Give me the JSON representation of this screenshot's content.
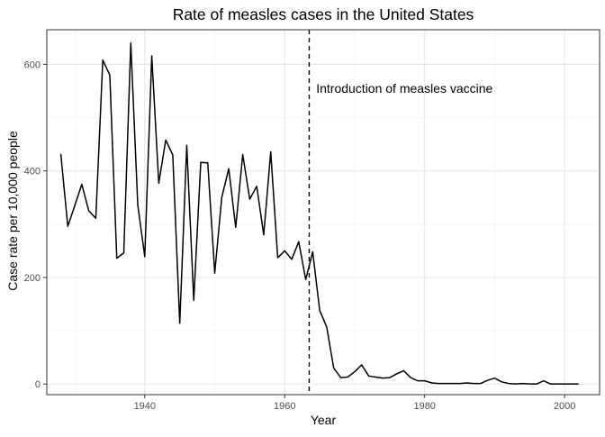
{
  "chart_data": {
    "type": "line",
    "title": "Rate of measles cases in the United States",
    "xlabel": "Year",
    "ylabel": "Case rate per 10,000 people",
    "xlim": [
      1926,
      2005
    ],
    "ylim": [
      -20,
      665
    ],
    "x_ticks": [
      1940,
      1960,
      1980,
      2000
    ],
    "y_ticks": [
      0,
      200,
      400,
      600
    ],
    "grid": true,
    "legend": "none",
    "series": [
      {
        "color": "#000000",
        "x": [
          1928,
          1929,
          1930,
          1931,
          1932,
          1933,
          1934,
          1935,
          1936,
          1937,
          1938,
          1939,
          1940,
          1941,
          1942,
          1943,
          1944,
          1945,
          1946,
          1947,
          1948,
          1949,
          1950,
          1951,
          1952,
          1953,
          1954,
          1955,
          1956,
          1957,
          1958,
          1959,
          1960,
          1961,
          1962,
          1963,
          1964,
          1965,
          1966,
          1967,
          1968,
          1969,
          1970,
          1971,
          1972,
          1973,
          1974,
          1975,
          1976,
          1977,
          1978,
          1979,
          1980,
          1981,
          1982,
          1983,
          1984,
          1985,
          1986,
          1987,
          1988,
          1989,
          1990,
          1991,
          1992,
          1993,
          1994,
          1995,
          1996,
          1997,
          1998,
          1999,
          2000,
          2001,
          2002
        ],
        "y": [
          432,
          296,
          335,
          375,
          325,
          311,
          608,
          580,
          236,
          246,
          640,
          336,
          239,
          616,
          377,
          458,
          430,
          114,
          448,
          157,
          416,
          415,
          208,
          350,
          404,
          294,
          431,
          347,
          371,
          280,
          436,
          237,
          250,
          234,
          267,
          196,
          248,
          138,
          107,
          30,
          12,
          13,
          23,
          36,
          15,
          13,
          11,
          12,
          19,
          25,
          12,
          6,
          6,
          2,
          1,
          1,
          1,
          1,
          2,
          1,
          1,
          7,
          11,
          4,
          1,
          0,
          1,
          0,
          0,
          6,
          0,
          0,
          0,
          0,
          0
        ]
      }
    ],
    "annotations": [
      {
        "type": "vline",
        "x": 1963.5,
        "style": "dashed"
      },
      {
        "type": "text",
        "x": 1964.5,
        "y": 555,
        "text": "Introduction of measles vaccine"
      }
    ]
  }
}
